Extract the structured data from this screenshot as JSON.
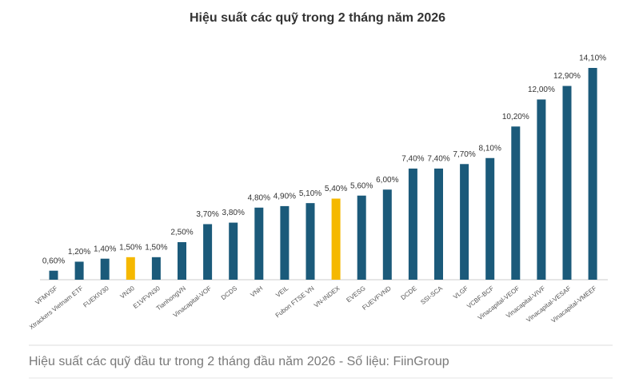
{
  "chart_data": {
    "type": "bar",
    "title": "Hiệu suất các quỹ trong 2 tháng năm 2026",
    "caption": "Hiệu suất các quỹ đầu tư trong 2 tháng đầu năm 2026 - Số liệu: FiinGroup",
    "categories": [
      "VFMVSF",
      "Xtrackers Vietnam ETF",
      "FUEKIV30",
      "VN30",
      "E1VFVN30",
      "TianhongVN",
      "Vinacapital-VOF",
      "DCDS",
      "VNH",
      "VEIL",
      "Fubon FTSE VN",
      "VN-INDEX",
      "EVESG",
      "FUEVFVND",
      "DCDE",
      "SSI-SCA",
      "VLGF",
      "VCBF-BCF",
      "Vinacapital-VEOF",
      "Vinacapital-VIVF",
      "Vinacapital-VESAF",
      "Vinacapital-VMEEF"
    ],
    "values": [
      0.6,
      1.2,
      1.4,
      1.5,
      1.5,
      2.5,
      3.7,
      3.8,
      4.8,
      4.9,
      5.1,
      5.4,
      5.6,
      6.0,
      7.4,
      7.4,
      7.7,
      8.1,
      10.2,
      12.0,
      12.9,
      14.1
    ],
    "value_labels": [
      "0,60%",
      "1,20%",
      "1,40%",
      "1,50%",
      "1,50%",
      "2,50%",
      "3,70%",
      "3,80%",
      "4,80%",
      "4,90%",
      "5,10%",
      "5,40%",
      "5,60%",
      "6,00%",
      "7,40%",
      "7,40%",
      "7,70%",
      "8,10%",
      "10,20%",
      "12,00%",
      "12,90%",
      "14,10%"
    ],
    "colors": [
      "#1b5a7a",
      "#1b5a7a",
      "#1b5a7a",
      "#f5b800",
      "#1b5a7a",
      "#1b5a7a",
      "#1b5a7a",
      "#1b5a7a",
      "#1b5a7a",
      "#1b5a7a",
      "#1b5a7a",
      "#f5b800",
      "#1b5a7a",
      "#1b5a7a",
      "#1b5a7a",
      "#1b5a7a",
      "#1b5a7a",
      "#1b5a7a",
      "#1b5a7a",
      "#1b5a7a",
      "#1b5a7a",
      "#1b5a7a"
    ]
  }
}
